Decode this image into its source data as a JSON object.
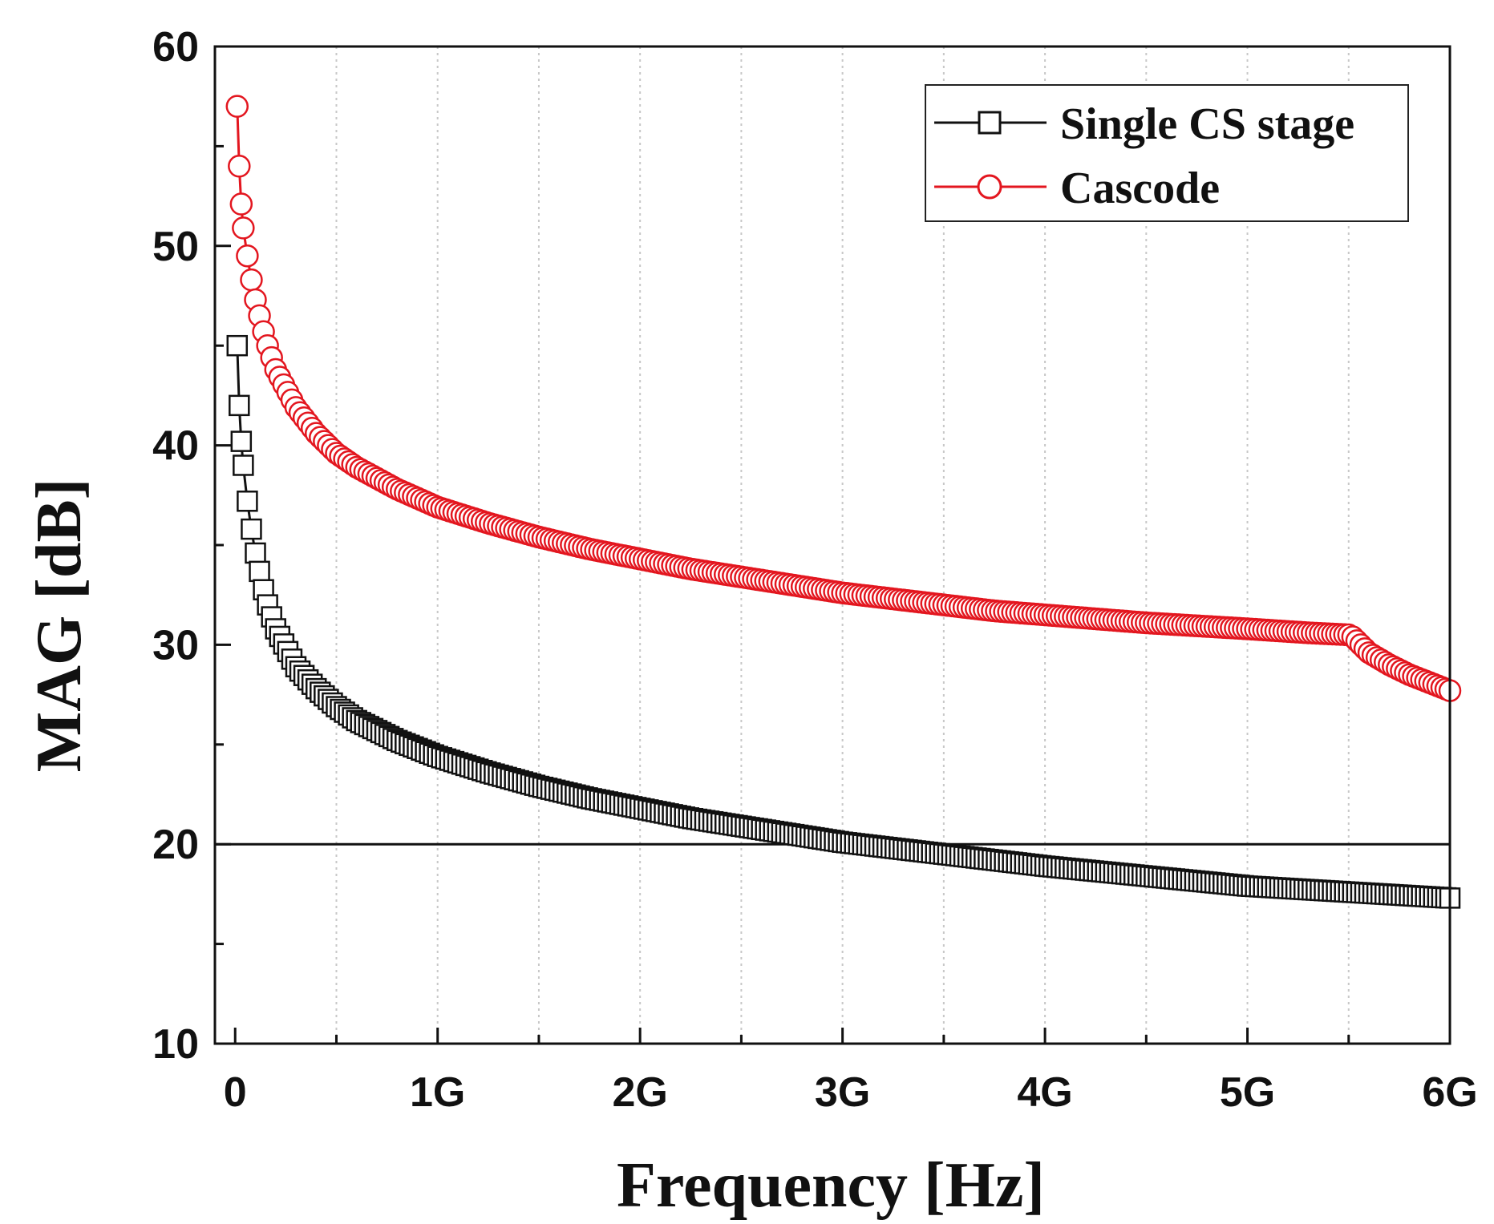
{
  "chart_data": {
    "type": "line",
    "title": "",
    "xlabel": "Frequency [Hz]",
    "ylabel": "MAG [dB]",
    "xlim": [
      -0.1,
      6.0
    ],
    "ylim": [
      10,
      60
    ],
    "x_unit": "GHz",
    "x_ticks": [
      0,
      1,
      2,
      3,
      4,
      5,
      6
    ],
    "x_tick_labels": [
      "0",
      "1G",
      "2G",
      "3G",
      "4G",
      "5G",
      "6G"
    ],
    "y_ticks": [
      10,
      20,
      30,
      40,
      50,
      60
    ],
    "y_tick_labels": [
      "10",
      "20",
      "30",
      "40",
      "50",
      "60"
    ],
    "grid": "vertical dotted",
    "reference_line": {
      "y": 20
    },
    "legend": {
      "position": "top-right",
      "entries": [
        "Single CS stage",
        "Cascode"
      ]
    },
    "series": [
      {
        "name": "Single CS stage",
        "color": "#111111",
        "marker": "square",
        "x": [
          0.01,
          0.02,
          0.03,
          0.04,
          0.06,
          0.08,
          0.1,
          0.15,
          0.2,
          0.3,
          0.4,
          0.5,
          0.6,
          0.8,
          1.0,
          1.25,
          1.5,
          1.75,
          2.0,
          2.25,
          2.5,
          2.75,
          3.0,
          3.25,
          3.5,
          3.75,
          4.0,
          4.5,
          5.0,
          5.5,
          6.0
        ],
        "values": [
          45,
          42,
          40.2,
          39,
          37.2,
          35.8,
          34.6,
          32.3,
          30.8,
          28.9,
          27.8,
          26.9,
          26.2,
          25.2,
          24.4,
          23.6,
          22.9,
          22.3,
          21.8,
          21.3,
          20.9,
          20.5,
          20.1,
          19.8,
          19.5,
          19.2,
          18.9,
          18.4,
          17.9,
          17.6,
          17.3
        ]
      },
      {
        "name": "Cascode",
        "color": "#e3161f",
        "marker": "circle",
        "x": [
          0.01,
          0.02,
          0.03,
          0.04,
          0.06,
          0.08,
          0.1,
          0.15,
          0.2,
          0.3,
          0.4,
          0.5,
          0.6,
          0.8,
          1.0,
          1.25,
          1.5,
          1.75,
          2.0,
          2.25,
          2.5,
          2.75,
          3.0,
          3.25,
          3.5,
          3.75,
          4.0,
          4.5,
          5.0,
          5.3,
          5.5,
          5.52,
          5.6,
          5.7,
          5.8,
          5.9,
          6.0
        ],
        "values": [
          57,
          54,
          52.1,
          50.9,
          49.5,
          48.3,
          47.3,
          45.3,
          43.8,
          41.9,
          40.6,
          39.6,
          38.9,
          37.8,
          36.9,
          36.1,
          35.4,
          34.8,
          34.3,
          33.8,
          33.4,
          33.0,
          32.6,
          32.3,
          32.0,
          31.7,
          31.5,
          31.1,
          30.8,
          30.6,
          30.5,
          30.4,
          29.6,
          29.0,
          28.5,
          28.1,
          27.7
        ]
      }
    ]
  }
}
